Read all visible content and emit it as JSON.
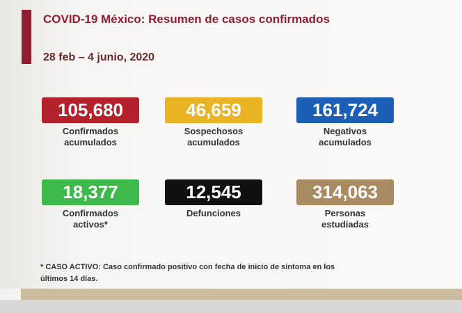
{
  "header": {
    "title": "COVID-19 México: Resumen de casos confirmados",
    "date": "28 feb – 4 junio, 2020"
  },
  "stats": [
    {
      "value": "105,680",
      "label": [
        "Confirmados",
        "acumulados"
      ],
      "color": "#b5212b"
    },
    {
      "value": "46,659",
      "label": [
        "Sospechosos",
        "acumulados"
      ],
      "color": "#eab323"
    },
    {
      "value": "161,724",
      "label": [
        "Negativos",
        "acumulados"
      ],
      "color": "#1d5fb7"
    },
    {
      "value": "18,377",
      "label": [
        "Confirmados",
        "activos*"
      ],
      "color": "#3dba4b"
    },
    {
      "value": "12,545",
      "label": [
        "Defunciones"
      ],
      "color": "#111111"
    },
    {
      "value": "314,063",
      "label": [
        "Personas",
        "estudiadas"
      ],
      "color": "#a88b60"
    }
  ],
  "footnote": [
    "* CASO ACTIVO: Caso confirmado positivo con fecha de inicio de síntoma en los",
    "últimos 14 días."
  ]
}
